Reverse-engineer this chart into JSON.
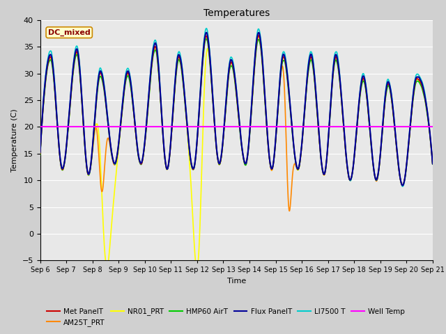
{
  "title": "Temperatures",
  "xlabel": "Time",
  "ylabel": "Temperature (C)",
  "ylim": [
    -5,
    40
  ],
  "xlim": [
    0,
    15
  ],
  "plot_bg_color": "#e8e8e8",
  "fig_bg_color": "#d0d0d0",
  "grid_color": "#ffffff",
  "annotation_text": "DC_mixed",
  "annotation_color": "#8b0000",
  "annotation_bg": "#ffffcc",
  "annotation_border": "#cc8800",
  "well_temp_value": 20.0,
  "series": {
    "Met PanelT": {
      "color": "#cc0000",
      "lw": 1.2
    },
    "AM25T_PRT": {
      "color": "#ff8800",
      "lw": 1.2
    },
    "NR01_PRT": {
      "color": "#ffff00",
      "lw": 1.2
    },
    "HMP60 AirT": {
      "color": "#00cc00",
      "lw": 1.2
    },
    "Flux PanelT": {
      "color": "#000099",
      "lw": 1.5
    },
    "LI7500 T": {
      "color": "#00cccc",
      "lw": 1.2
    },
    "Well Temp": {
      "color": "#ff00ff",
      "lw": 1.5
    }
  },
  "xtick_labels": [
    "Sep 6",
    "Sep 7",
    "Sep 8",
    "Sep 9",
    "Sep 10",
    "Sep 11",
    "Sep 12",
    "Sep 13",
    "Sep 14",
    "Sep 15",
    "Sep 16",
    "Sep 17",
    "Sep 18",
    "Sep 19",
    "Sep 20",
    "Sep 21"
  ],
  "xtick_positions": [
    0,
    1,
    2,
    3,
    4,
    5,
    6,
    7,
    8,
    9,
    10,
    11,
    12,
    13,
    14,
    15
  ],
  "peak_times": [
    0.4,
    1.4,
    2.3,
    3.35,
    4.4,
    5.3,
    6.35,
    7.3,
    8.35,
    9.3,
    10.35,
    11.3,
    12.35,
    13.3,
    14.4
  ],
  "peak_maxes": [
    33,
    34,
    30,
    30,
    35,
    33,
    37,
    32,
    37,
    33,
    33,
    33,
    29,
    28,
    29
  ],
  "trough_times": [
    0.0,
    0.85,
    1.85,
    2.85,
    3.85,
    4.85,
    5.85,
    6.85,
    7.85,
    8.85,
    9.85,
    10.85,
    11.85,
    12.85,
    13.85,
    15.0
  ],
  "trough_mins": [
    15,
    12,
    11,
    13,
    13,
    12,
    12,
    13,
    13,
    12,
    12,
    11,
    10,
    10,
    9,
    13
  ]
}
